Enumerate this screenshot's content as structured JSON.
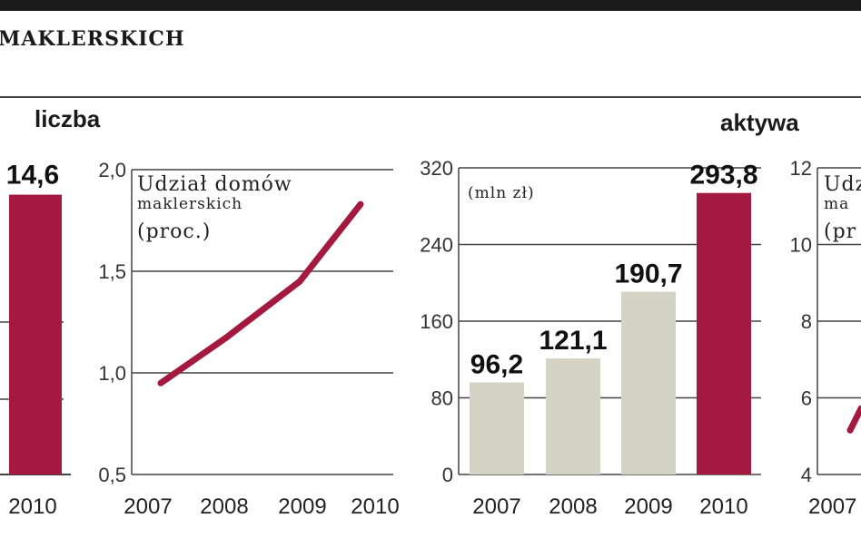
{
  "header": {
    "title": "MAKLERSKICH"
  },
  "sections": {
    "left_label": "liczba",
    "right_label": "aktywa"
  },
  "colors": {
    "accent": "#a3193f",
    "bar_light": "#d5d3c6",
    "grid": "#444444",
    "text": "#1a1a1a"
  },
  "chart_data": [
    {
      "type": "bar",
      "categories": [
        "2010"
      ],
      "values": [
        14.6
      ],
      "value_labels": [
        "14,6"
      ],
      "highlight_color": "#a3193f"
    },
    {
      "type": "line",
      "title_lines": [
        "Udział domów",
        "maklerskich",
        "(proc.)"
      ],
      "categories": [
        "2007",
        "2008",
        "2009",
        "2010"
      ],
      "values": [
        0.95,
        1.17,
        1.45,
        1.83
      ],
      "ylim": [
        0.5,
        2.0
      ],
      "yticks": [
        0.5,
        1.0,
        1.5,
        2.0
      ],
      "ytick_labels": [
        "0,5",
        "1,0",
        "1,5",
        "2,0"
      ],
      "grid": true,
      "line_color": "#a3193f"
    },
    {
      "type": "bar",
      "title_lines": [
        "(mln zł)"
      ],
      "categories": [
        "2007",
        "2008",
        "2009",
        "2010"
      ],
      "values": [
        96.2,
        121.1,
        190.7,
        293.8
      ],
      "value_labels": [
        "96,2",
        "121,1",
        "190,7",
        "293,8"
      ],
      "ylim": [
        0,
        320
      ],
      "yticks": [
        0,
        80,
        160,
        240,
        320
      ],
      "ytick_labels": [
        "0",
        "80",
        "160",
        "240",
        "320"
      ],
      "grid": true,
      "colors": [
        "#d5d3c6",
        "#d5d3c6",
        "#d5d3c6",
        "#a3193f"
      ]
    },
    {
      "type": "line",
      "title_lines": [
        "Udz",
        "ma",
        "(pr"
      ],
      "categories": [
        "2007"
      ],
      "values": [
        5.2
      ],
      "ylim": [
        4,
        12
      ],
      "yticks": [
        4,
        6,
        8,
        10,
        12
      ],
      "ytick_labels": [
        "4",
        "6",
        "8",
        "10",
        "12"
      ],
      "grid": true,
      "line_color": "#a3193f"
    }
  ]
}
